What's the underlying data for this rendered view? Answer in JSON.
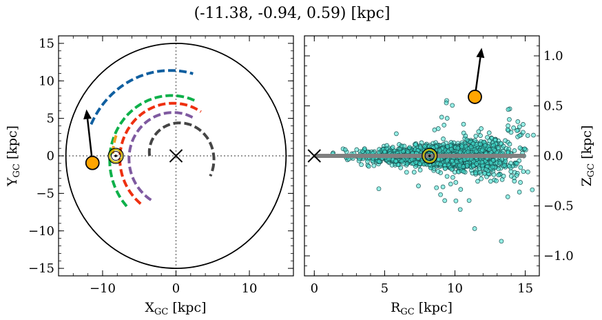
{
  "title": "(-11.38, -0.94, 0.59) [kpc]",
  "chart_data": [
    {
      "type": "scatter",
      "panel": "left",
      "xlabel": "X_GC [kpc]",
      "ylabel": "Y_GC [kpc]",
      "xlim": [
        -16,
        16
      ],
      "ylim": [
        -16,
        16
      ],
      "xticks": [
        -10,
        0,
        10
      ],
      "yticks": [
        -15,
        -10,
        -5,
        0,
        5,
        10,
        15
      ],
      "xtick_labels": [
        "−10",
        "0",
        "10"
      ],
      "ytick_labels": [
        "−15",
        "−10",
        "−5",
        "0",
        "5",
        "10",
        "15"
      ],
      "boundary_circle_radius": 15,
      "reference_lines": {
        "x": 0,
        "y": 0,
        "style": "dotted"
      },
      "galactic_center": {
        "x": 0,
        "y": 0,
        "marker": "x"
      },
      "sun": {
        "x": -8.2,
        "y": 0
      },
      "object": {
        "x": -11.38,
        "y": -0.94,
        "color": "#ffa500"
      },
      "velocity_arrow": {
        "from": [
          -11.38,
          -0.94
        ],
        "to": [
          -12.2,
          6.2
        ]
      },
      "arms": [
        {
          "color": "#105fa0",
          "radius": 12.3,
          "theta_start": 160,
          "theta_end": 78,
          "radius_end": 11.2
        },
        {
          "color": "#0eb04a",
          "radius": 9.5,
          "theta_start": 225,
          "theta_end": 70,
          "radius_end": 7.8
        },
        {
          "color": "#f0a020",
          "radius": 8.6,
          "theta_start": 178,
          "theta_end": 160,
          "radius_end": 8.6
        },
        {
          "color": "#ee3010",
          "radius": 8.0,
          "theta_start": 233,
          "theta_end": 60,
          "radius_end": 6.8
        },
        {
          "color": "#7f5aa0",
          "radius": 6.8,
          "theta_start": 240,
          "theta_end": 65,
          "radius_end": 5.6
        },
        {
          "color": "#454545",
          "radius": 3.6,
          "theta_start": 180,
          "theta_end": -30,
          "radius_end": 5.4
        }
      ]
    },
    {
      "type": "scatter",
      "panel": "right",
      "xlabel": "R_GC [kpc]",
      "ylabel": "Z_GC [kpc]",
      "xlim": [
        -0.7,
        16
      ],
      "ylim": [
        -1.2,
        1.2
      ],
      "xticks": [
        0,
        5,
        10,
        15
      ],
      "yticks": [
        -1.0,
        -0.5,
        0.0,
        0.5,
        1.0
      ],
      "xtick_labels": [
        "0",
        "5",
        "10",
        "15"
      ],
      "ytick_labels": [
        "−1.0",
        "−0.5",
        "0.0",
        "0.5",
        "1.0"
      ],
      "disk_line": {
        "x": [
          0,
          15
        ],
        "z": 0,
        "color": "#808080"
      },
      "galactic_center": {
        "x": 0,
        "z": 0,
        "marker": "x"
      },
      "sun": {
        "x": 8.2,
        "z": 0
      },
      "object": {
        "x": 11.42,
        "z": 0.59,
        "color": "#ffa500"
      },
      "velocity_arrow": {
        "from": [
          11.42,
          0.59
        ],
        "to": [
          11.9,
          1.08
        ]
      },
      "stars_color": "#40e0d0",
      "stars_count": 2200
    }
  ]
}
